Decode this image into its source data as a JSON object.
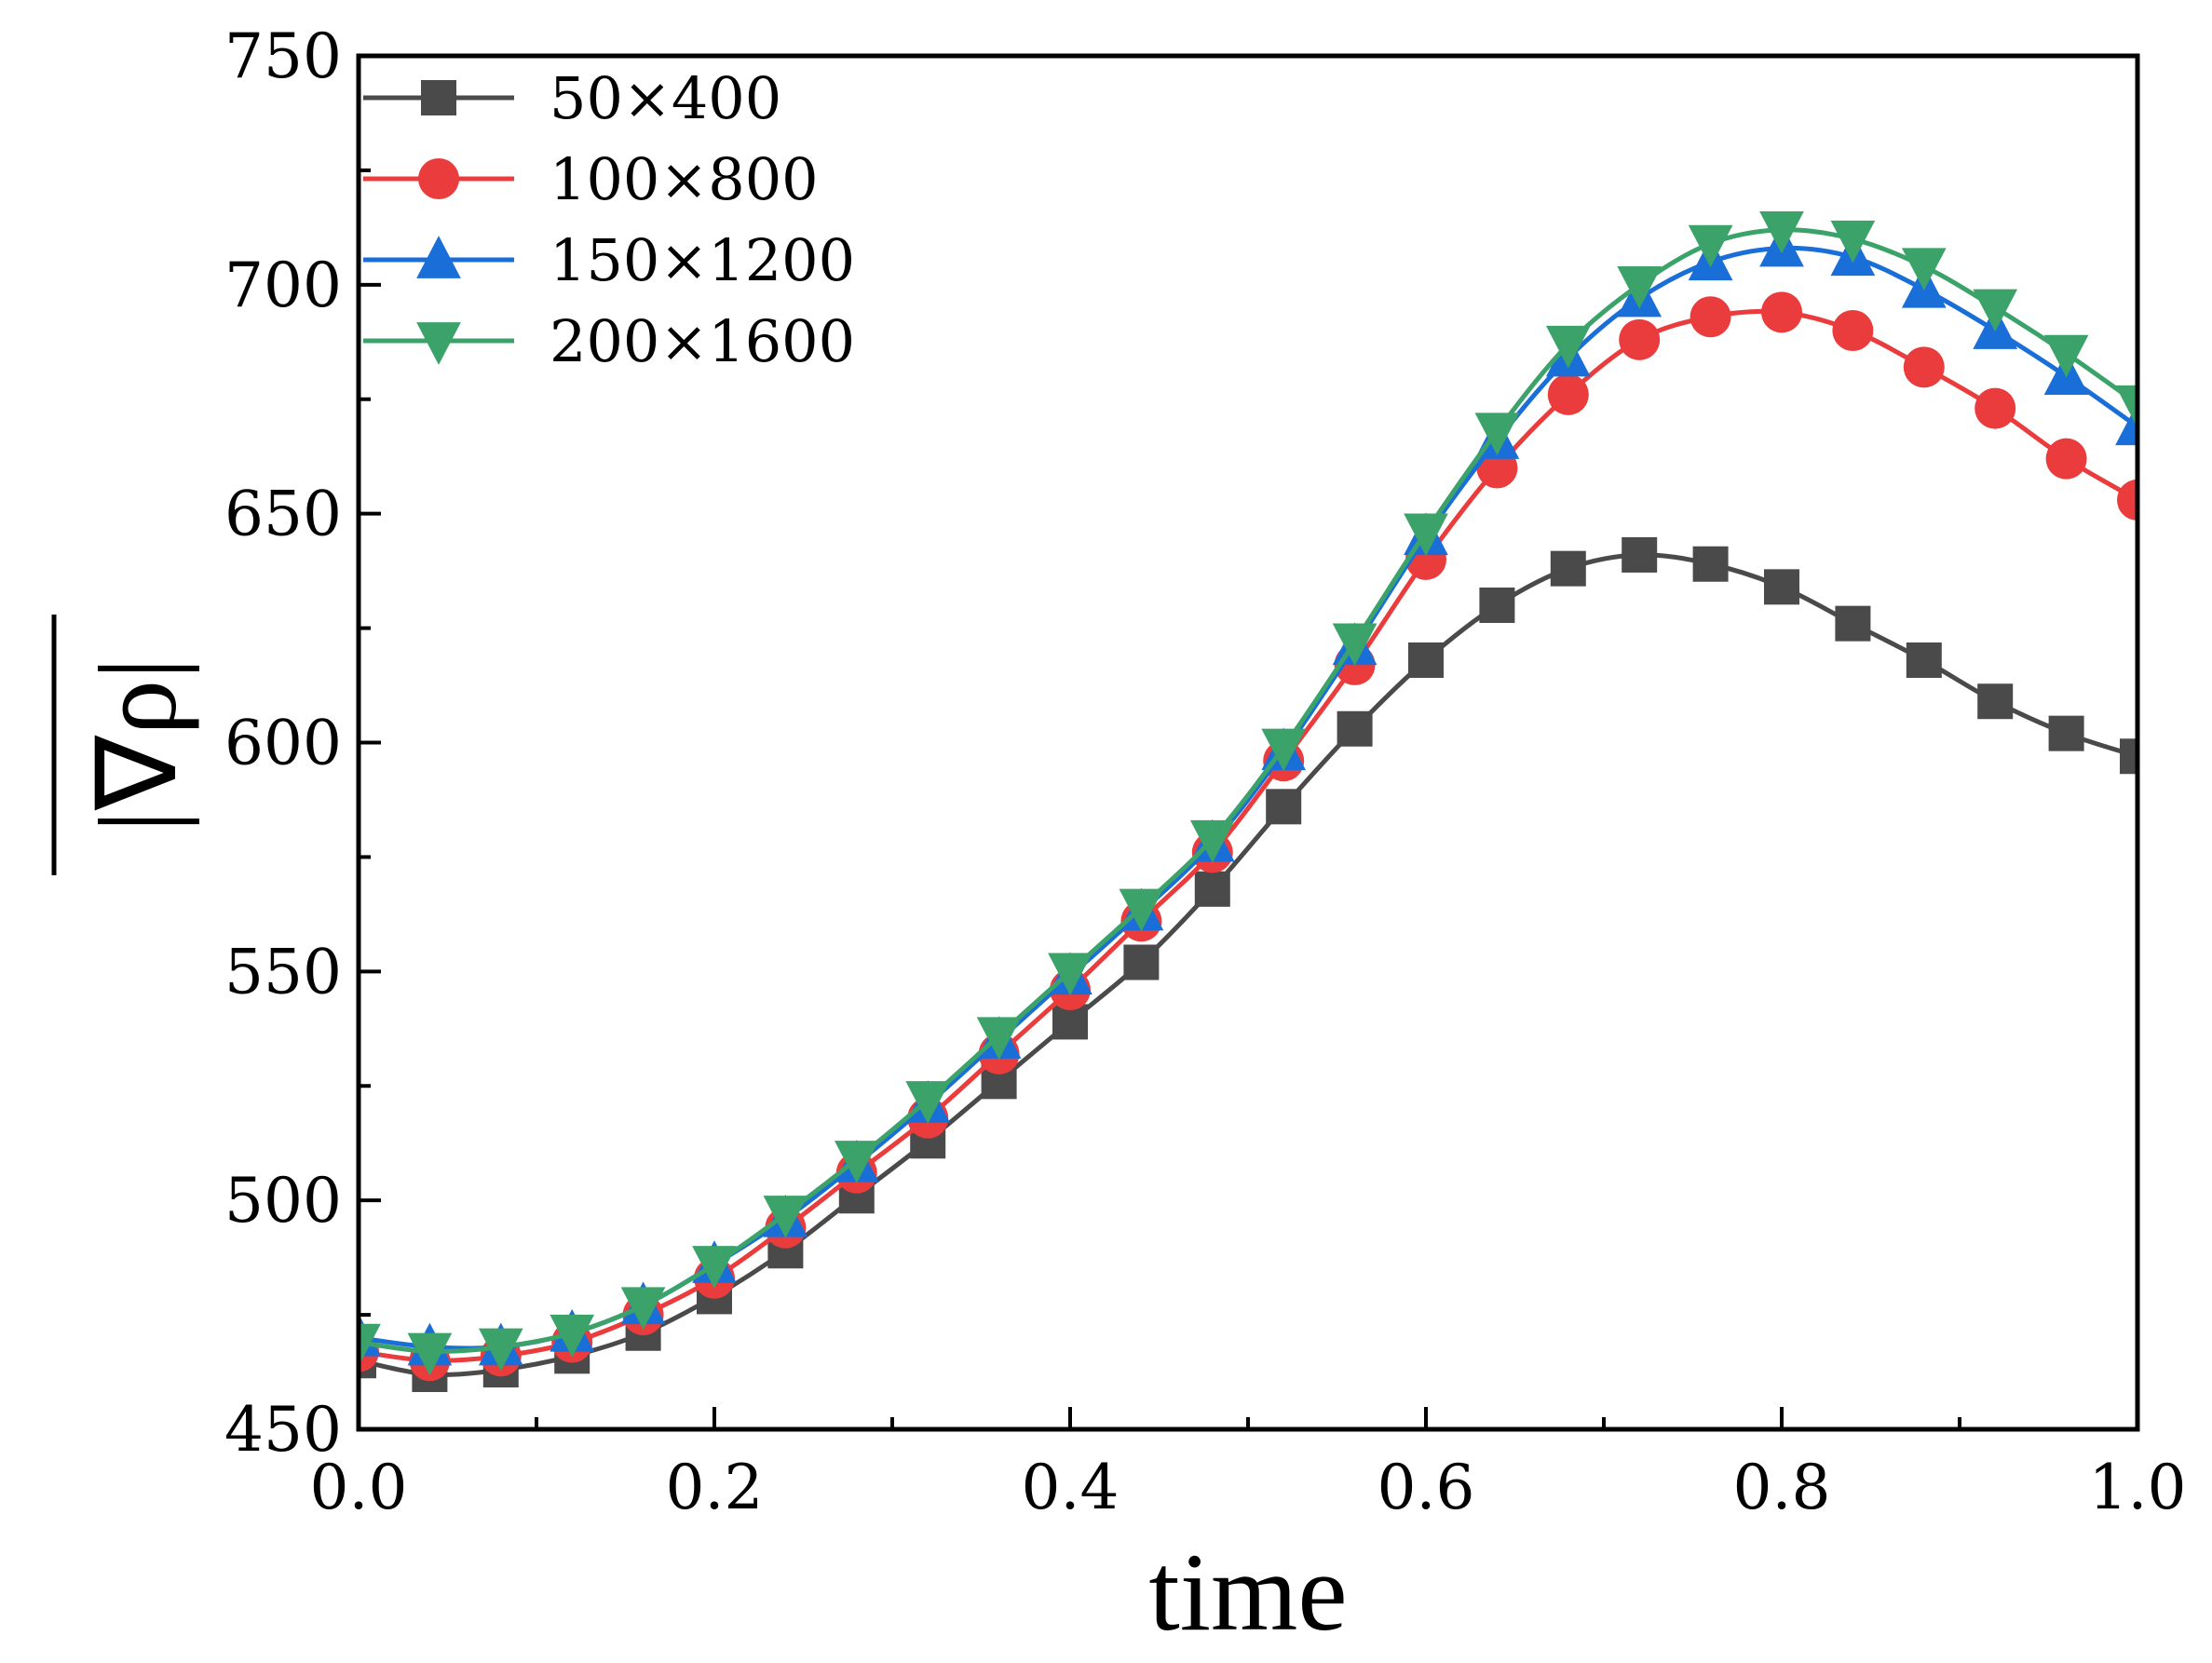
{
  "chart_data": {
    "type": "line",
    "xlabel": "time",
    "ylabel": "|∇ρ|",
    "xlim": [
      0.0,
      1.0
    ],
    "ylim": [
      450,
      750
    ],
    "xticks": [
      "0.0",
      "0.2",
      "0.4",
      "0.6",
      "0.8",
      "1.0"
    ],
    "yticks": [
      "450",
      "500",
      "550",
      "600",
      "650",
      "700",
      "750"
    ],
    "grid": false,
    "legend": "top-left",
    "x": [
      0.0,
      0.04,
      0.08,
      0.12,
      0.16,
      0.2,
      0.24,
      0.28,
      0.32,
      0.36,
      0.4,
      0.44,
      0.48,
      0.52,
      0.56,
      0.6,
      0.64,
      0.68,
      0.72,
      0.76,
      0.8,
      0.84,
      0.88,
      0.92,
      0.96,
      1.0
    ],
    "series": [
      {
        "name": "50×400",
        "color": "#4a4a4a",
        "marker": "square",
        "values": [
          465,
          462,
          463,
          466,
          471,
          479,
          489,
          501,
          513,
          526,
          539,
          552,
          568,
          586,
          603,
          618,
          630,
          638,
          641,
          639,
          634,
          626,
          618,
          609,
          602,
          597
        ]
      },
      {
        "name": "100×800",
        "color": "#ea3c3c",
        "marker": "circle",
        "values": [
          467,
          465,
          466,
          469,
          475,
          483,
          494,
          506,
          518,
          532,
          546,
          561,
          576,
          596,
          617,
          640,
          660,
          676,
          688,
          693,
          694,
          690,
          682,
          673,
          662,
          653
        ]
      },
      {
        "name": "150×1200",
        "color": "#1a6ed8",
        "marker": "triangle-up",
        "values": [
          470,
          468,
          468,
          471,
          477,
          486,
          496,
          508,
          521,
          535,
          549,
          563,
          578,
          598,
          621,
          645,
          666,
          684,
          697,
          705,
          708,
          706,
          699,
          690,
          680,
          669
        ]
      },
      {
        "name": "200×1600",
        "color": "#3ba36a",
        "marker": "triangle-down",
        "values": [
          469,
          467,
          468,
          471,
          477,
          486,
          497,
          509,
          522,
          536,
          550,
          564,
          579,
          599,
          622,
          646,
          668,
          687,
          700,
          709,
          712,
          710,
          704,
          695,
          685,
          674
        ]
      }
    ]
  }
}
